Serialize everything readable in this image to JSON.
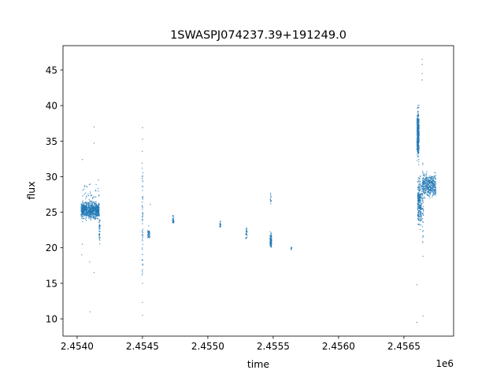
{
  "chart_data": {
    "type": "scatter",
    "title": "1SWASPJ074237.39+191249.0",
    "xlabel": "time",
    "ylabel": "flux",
    "x_offset_label": "1e6",
    "xlim": [
      2453892,
      2456880
    ],
    "ylim": [
      7.57,
      48.43
    ],
    "grid": false,
    "legend": "none",
    "color": "#1f77b4",
    "x_ticks": [
      {
        "value": 2454000,
        "label": "2.4540"
      },
      {
        "value": 2454500,
        "label": "2.4545"
      },
      {
        "value": 2455000,
        "label": "2.4550"
      },
      {
        "value": 2455500,
        "label": "2.4555"
      },
      {
        "value": 2456000,
        "label": "2.4560"
      },
      {
        "value": 2456500,
        "label": "2.4565"
      }
    ],
    "y_ticks": [
      {
        "value": 10,
        "label": "10"
      },
      {
        "value": 15,
        "label": "15"
      },
      {
        "value": 20,
        "label": "20"
      },
      {
        "value": 25,
        "label": "25"
      },
      {
        "value": 30,
        "label": "30"
      },
      {
        "value": 35,
        "label": "35"
      },
      {
        "value": 40,
        "label": "40"
      },
      {
        "value": 45,
        "label": "45"
      }
    ],
    "clusters": [
      {
        "x": [
          2454030,
          2454170
        ],
        "y": [
          23.7,
          26.8
        ],
        "count": 700
      },
      {
        "x": [
          2454030,
          2454170
        ],
        "y": [
          22.0,
          31.0
        ],
        "count": 80
      },
      {
        "x": [
          2454168,
          2454176
        ],
        "y": [
          19.6,
          25.5
        ],
        "count": 40
      },
      {
        "x": [
          2454497,
          2454503
        ],
        "y": [
          10.5,
          37.0
        ],
        "count": 60
      },
      {
        "x": [
          2454540,
          2454556
        ],
        "y": [
          20.5,
          23.3
        ],
        "count": 40
      },
      {
        "x": [
          2454730,
          2454740
        ],
        "y": [
          23.0,
          25.0
        ],
        "count": 30
      },
      {
        "x": [
          2455092,
          2455100
        ],
        "y": [
          22.5,
          24.2
        ],
        "count": 20
      },
      {
        "x": [
          2455290,
          2455300
        ],
        "y": [
          21.0,
          23.0
        ],
        "count": 30
      },
      {
        "x": [
          2455476,
          2455488
        ],
        "y": [
          19.5,
          22.7
        ],
        "count": 90
      },
      {
        "x": [
          2455478,
          2455486
        ],
        "y": [
          25.5,
          28.5
        ],
        "count": 12
      },
      {
        "x": [
          2455636,
          2455642
        ],
        "y": [
          19.3,
          20.5
        ],
        "count": 8
      },
      {
        "x": [
          2456600,
          2456616
        ],
        "y": [
          31.0,
          41.0
        ],
        "count": 350
      },
      {
        "x": [
          2456605,
          2456635
        ],
        "y": [
          22.0,
          31.0
        ],
        "count": 250
      },
      {
        "x": [
          2456640,
          2456745
        ],
        "y": [
          26.5,
          31.0
        ],
        "count": 400
      },
      {
        "x": [
          2456640,
          2456650
        ],
        "y": [
          18.5,
          34.0
        ],
        "count": 50
      }
    ],
    "outliers": [
      [
        2454040,
        32.4
      ],
      [
        2454035,
        19.0
      ],
      [
        2454040,
        20.5
      ],
      [
        2454100,
        11.0
      ],
      [
        2454130,
        37.0
      ],
      [
        2454130,
        34.7
      ],
      [
        2454130,
        16.5
      ],
      [
        2454095,
        18.0
      ],
      [
        2454500,
        36.9
      ],
      [
        2454500,
        10.5
      ],
      [
        2454500,
        12.3
      ],
      [
        2454500,
        15.0
      ],
      [
        2454560,
        26.1
      ],
      [
        2456640,
        46.5
      ],
      [
        2456640,
        45.8
      ],
      [
        2456640,
        44.5
      ],
      [
        2456640,
        43.6
      ],
      [
        2456600,
        14.8
      ],
      [
        2456600,
        9.5
      ],
      [
        2456645,
        10.4
      ],
      [
        2456645,
        18.8
      ]
    ]
  }
}
